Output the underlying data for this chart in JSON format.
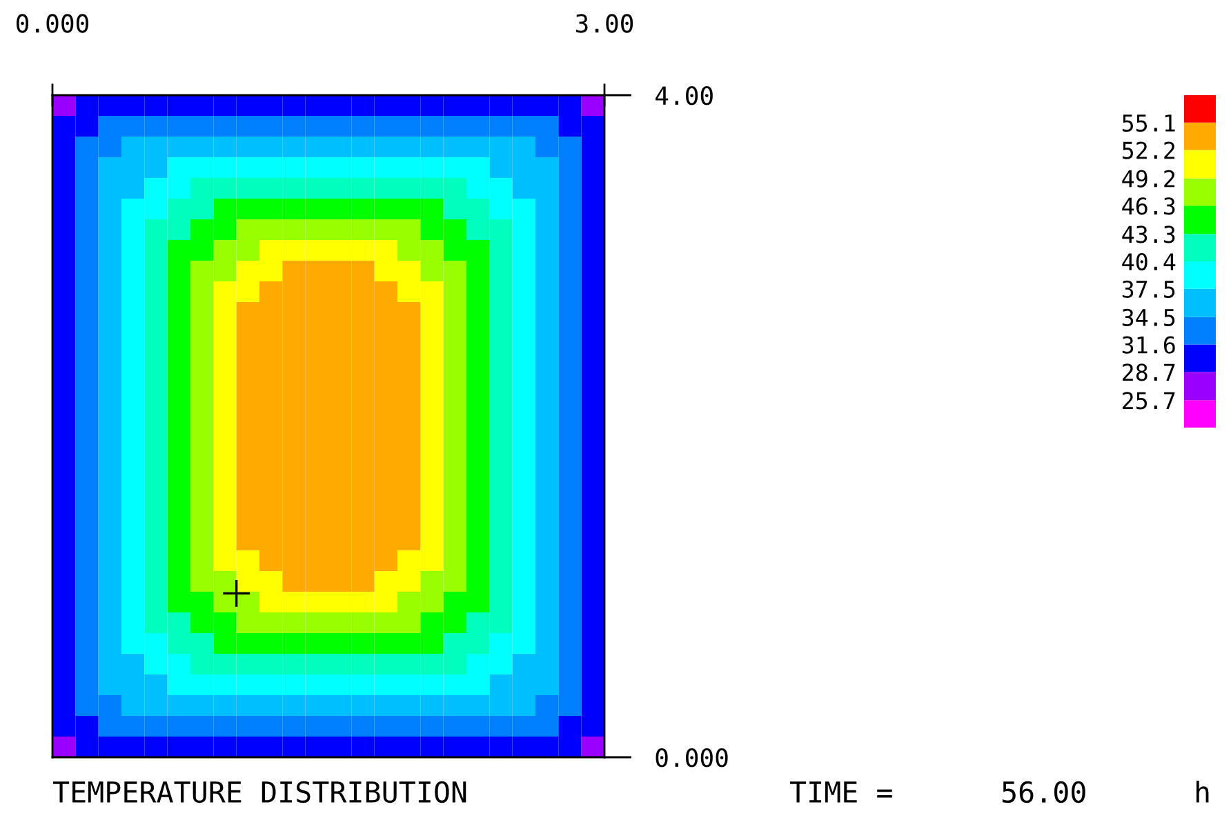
{
  "chart_data": {
    "type": "heatmap",
    "title": "TEMPERATURE DISTRIBUTION",
    "annotations": [
      "TIME =",
      "56.00",
      "h"
    ],
    "xlim": [
      0,
      3
    ],
    "ylim": [
      0,
      4
    ],
    "xticks": [
      {
        "value": 0,
        "label": "0.000"
      },
      {
        "value": 3,
        "label": "3.00"
      }
    ],
    "yticks": [
      {
        "value": 4,
        "label": "4.00"
      },
      {
        "value": 0,
        "label": "0.000"
      }
    ],
    "clim": [
      22.8,
      58.0
    ],
    "cticks": [
      25.7,
      28.7,
      31.6,
      34.5,
      37.5,
      40.4,
      43.3,
      46.3,
      49.2,
      52.2,
      55.1
    ],
    "colors": [
      "#ff00ff",
      "#9900ff",
      "#0000ff",
      "#0080ff",
      "#00bfff",
      "#00ffff",
      "#00ffbf",
      "#00ff00",
      "#99ff00",
      "#ffff00",
      "#ffaa00",
      "#ff0000"
    ],
    "series": [
      {
        "type": "scatter",
        "x": [
          1.0
        ],
        "values": [
          0.99
        ],
        "color": "#000000",
        "marker": "cross"
      }
    ],
    "cells": [
      [
        27.2,
        30.2,
        30.2,
        30.2,
        30.2,
        30.2,
        30.2,
        30.2,
        30.2,
        30.2,
        30.2,
        30.2,
        30.2,
        30.2,
        30.2,
        30.2,
        30.2,
        30.2,
        30.2,
        30.2,
        30.2,
        30.2,
        30.2,
        27.2
      ],
      [
        30.2,
        30.2,
        33.0,
        33.0,
        33.0,
        33.0,
        33.0,
        33.0,
        33.0,
        33.0,
        33.0,
        33.0,
        33.0,
        33.0,
        33.0,
        33.0,
        33.0,
        33.0,
        33.0,
        33.0,
        33.0,
        33.0,
        30.2,
        30.2
      ],
      [
        30.2,
        33.0,
        33.0,
        36.0,
        36.0,
        36.0,
        36.0,
        36.0,
        36.0,
        36.0,
        36.0,
        36.0,
        36.0,
        36.0,
        36.0,
        36.0,
        36.0,
        36.0,
        36.0,
        36.0,
        36.0,
        33.0,
        33.0,
        30.2
      ],
      [
        30.2,
        33.0,
        36.0,
        36.0,
        36.0,
        39.0,
        39.0,
        39.0,
        39.0,
        39.0,
        39.0,
        39.0,
        39.0,
        39.0,
        39.0,
        39.0,
        39.0,
        39.0,
        39.0,
        36.0,
        36.0,
        36.0,
        33.0,
        30.2
      ],
      [
        30.2,
        33.0,
        36.0,
        36.0,
        39.0,
        39.0,
        41.8,
        41.8,
        41.8,
        41.8,
        41.8,
        41.8,
        41.8,
        41.8,
        41.8,
        41.8,
        41.8,
        41.8,
        39.0,
        39.0,
        36.0,
        36.0,
        33.0,
        30.2
      ],
      [
        30.2,
        33.0,
        36.0,
        39.0,
        39.0,
        41.8,
        41.8,
        44.8,
        44.8,
        44.8,
        44.8,
        44.8,
        44.8,
        44.8,
        44.8,
        44.8,
        44.8,
        41.8,
        41.8,
        39.0,
        39.0,
        36.0,
        33.0,
        30.2
      ],
      [
        30.2,
        33.0,
        36.0,
        39.0,
        41.8,
        41.8,
        44.8,
        44.8,
        47.7,
        47.7,
        47.7,
        47.7,
        47.7,
        47.7,
        47.7,
        47.7,
        44.8,
        44.8,
        41.8,
        41.8,
        39.0,
        36.0,
        33.0,
        30.2
      ],
      [
        30.2,
        33.0,
        36.0,
        39.0,
        41.8,
        44.8,
        44.8,
        47.7,
        47.7,
        50.7,
        50.7,
        50.7,
        50.7,
        50.7,
        50.7,
        47.7,
        47.7,
        44.8,
        44.8,
        41.8,
        39.0,
        36.0,
        33.0,
        30.2
      ],
      [
        30.2,
        33.0,
        36.0,
        39.0,
        41.8,
        44.8,
        47.7,
        47.7,
        50.7,
        50.7,
        53.6,
        53.6,
        53.6,
        53.6,
        50.7,
        50.7,
        47.7,
        47.7,
        44.8,
        41.8,
        39.0,
        36.0,
        33.0,
        30.2
      ],
      [
        30.2,
        33.0,
        36.0,
        39.0,
        41.8,
        44.8,
        47.7,
        50.7,
        50.7,
        53.6,
        53.6,
        53.6,
        53.6,
        53.6,
        53.6,
        50.7,
        50.7,
        47.7,
        44.8,
        41.8,
        39.0,
        36.0,
        33.0,
        30.2
      ],
      [
        30.2,
        33.0,
        36.0,
        39.0,
        41.8,
        44.8,
        47.7,
        50.7,
        53.6,
        53.6,
        53.6,
        53.6,
        53.6,
        53.6,
        53.6,
        53.6,
        50.7,
        47.7,
        44.8,
        41.8,
        39.0,
        36.0,
        33.0,
        30.2
      ],
      [
        30.2,
        33.0,
        36.0,
        39.0,
        41.8,
        44.8,
        47.7,
        50.7,
        53.6,
        53.6,
        53.6,
        53.6,
        53.6,
        53.6,
        53.6,
        53.6,
        50.7,
        47.7,
        44.8,
        41.8,
        39.0,
        36.0,
        33.0,
        30.2
      ],
      [
        30.2,
        33.0,
        36.0,
        39.0,
        41.8,
        44.8,
        47.7,
        50.7,
        53.6,
        53.6,
        53.6,
        53.6,
        53.6,
        53.6,
        53.6,
        53.6,
        50.7,
        47.7,
        44.8,
        41.8,
        39.0,
        36.0,
        33.0,
        30.2
      ],
      [
        30.2,
        33.0,
        36.0,
        39.0,
        41.8,
        44.8,
        47.7,
        50.7,
        53.6,
        53.6,
        53.6,
        53.6,
        53.6,
        53.6,
        53.6,
        53.6,
        50.7,
        47.7,
        44.8,
        41.8,
        39.0,
        36.0,
        33.0,
        30.2
      ],
      [
        30.2,
        33.0,
        36.0,
        39.0,
        41.8,
        44.8,
        47.7,
        50.7,
        53.6,
        53.6,
        53.6,
        53.6,
        53.6,
        53.6,
        53.6,
        53.6,
        50.7,
        47.7,
        44.8,
        41.8,
        39.0,
        36.0,
        33.0,
        30.2
      ],
      [
        30.2,
        33.0,
        36.0,
        39.0,
        41.8,
        44.8,
        47.7,
        50.7,
        53.6,
        53.6,
        53.6,
        53.6,
        53.6,
        53.6,
        53.6,
        53.6,
        50.7,
        47.7,
        44.8,
        41.8,
        39.0,
        36.0,
        33.0,
        30.2
      ],
      [
        30.2,
        33.0,
        36.0,
        39.0,
        41.8,
        44.8,
        47.7,
        50.7,
        53.6,
        53.6,
        53.6,
        53.6,
        53.6,
        53.6,
        53.6,
        53.6,
        50.7,
        47.7,
        44.8,
        41.8,
        39.0,
        36.0,
        33.0,
        30.2
      ],
      [
        30.2,
        33.0,
        36.0,
        39.0,
        41.8,
        44.8,
        47.7,
        50.7,
        53.6,
        53.6,
        53.6,
        53.6,
        53.6,
        53.6,
        53.6,
        53.6,
        50.7,
        47.7,
        44.8,
        41.8,
        39.0,
        36.0,
        33.0,
        30.2
      ],
      [
        30.2,
        33.0,
        36.0,
        39.0,
        41.8,
        44.8,
        47.7,
        50.7,
        53.6,
        53.6,
        53.6,
        53.6,
        53.6,
        53.6,
        53.6,
        53.6,
        50.7,
        47.7,
        44.8,
        41.8,
        39.0,
        36.0,
        33.0,
        30.2
      ],
      [
        30.2,
        33.0,
        36.0,
        39.0,
        41.8,
        44.8,
        47.7,
        50.7,
        53.6,
        53.6,
        53.6,
        53.6,
        53.6,
        53.6,
        53.6,
        53.6,
        50.7,
        47.7,
        44.8,
        41.8,
        39.0,
        36.0,
        33.0,
        30.2
      ],
      [
        30.2,
        33.0,
        36.0,
        39.0,
        41.8,
        44.8,
        47.7,
        50.7,
        53.6,
        53.6,
        53.6,
        53.6,
        53.6,
        53.6,
        53.6,
        53.6,
        50.7,
        47.7,
        44.8,
        41.8,
        39.0,
        36.0,
        33.0,
        30.2
      ],
      [
        30.2,
        33.0,
        36.0,
        39.0,
        41.8,
        44.8,
        47.7,
        50.7,
        53.6,
        53.6,
        53.6,
        53.6,
        53.6,
        53.6,
        53.6,
        53.6,
        50.7,
        47.7,
        44.8,
        41.8,
        39.0,
        36.0,
        33.0,
        30.2
      ],
      [
        30.2,
        33.0,
        36.0,
        39.0,
        41.8,
        44.8,
        47.7,
        50.7,
        50.7,
        53.6,
        53.6,
        53.6,
        53.6,
        53.6,
        53.6,
        50.7,
        50.7,
        47.7,
        44.8,
        41.8,
        39.0,
        36.0,
        33.0,
        30.2
      ],
      [
        30.2,
        33.0,
        36.0,
        39.0,
        41.8,
        44.8,
        47.7,
        47.7,
        50.7,
        50.7,
        53.6,
        53.6,
        53.6,
        53.6,
        50.7,
        50.7,
        47.7,
        47.7,
        44.8,
        41.8,
        39.0,
        36.0,
        33.0,
        30.2
      ],
      [
        30.2,
        33.0,
        36.0,
        39.0,
        41.8,
        44.8,
        44.8,
        47.7,
        47.7,
        50.7,
        50.7,
        50.7,
        50.7,
        50.7,
        50.7,
        47.7,
        47.7,
        44.8,
        44.8,
        41.8,
        39.0,
        36.0,
        33.0,
        30.2
      ],
      [
        30.2,
        33.0,
        36.0,
        39.0,
        41.8,
        41.8,
        44.8,
        44.8,
        47.7,
        47.7,
        47.7,
        47.7,
        47.7,
        47.7,
        47.7,
        47.7,
        44.8,
        44.8,
        41.8,
        41.8,
        39.0,
        36.0,
        33.0,
        30.2
      ],
      [
        30.2,
        33.0,
        36.0,
        39.0,
        39.0,
        41.8,
        41.8,
        44.8,
        44.8,
        44.8,
        44.8,
        44.8,
        44.8,
        44.8,
        44.8,
        44.8,
        44.8,
        41.8,
        41.8,
        39.0,
        39.0,
        36.0,
        33.0,
        30.2
      ],
      [
        30.2,
        33.0,
        36.0,
        36.0,
        39.0,
        39.0,
        41.8,
        41.8,
        41.8,
        41.8,
        41.8,
        41.8,
        41.8,
        41.8,
        41.8,
        41.8,
        41.8,
        41.8,
        39.0,
        39.0,
        36.0,
        36.0,
        33.0,
        30.2
      ],
      [
        30.2,
        33.0,
        36.0,
        36.0,
        36.0,
        39.0,
        39.0,
        39.0,
        39.0,
        39.0,
        39.0,
        39.0,
        39.0,
        39.0,
        39.0,
        39.0,
        39.0,
        39.0,
        39.0,
        36.0,
        36.0,
        36.0,
        33.0,
        30.2
      ],
      [
        30.2,
        33.0,
        33.0,
        36.0,
        36.0,
        36.0,
        36.0,
        36.0,
        36.0,
        36.0,
        36.0,
        36.0,
        36.0,
        36.0,
        36.0,
        36.0,
        36.0,
        36.0,
        36.0,
        36.0,
        36.0,
        33.0,
        33.0,
        30.2
      ],
      [
        30.2,
        30.2,
        33.0,
        33.0,
        33.0,
        33.0,
        33.0,
        33.0,
        33.0,
        33.0,
        33.0,
        33.0,
        33.0,
        33.0,
        33.0,
        33.0,
        33.0,
        33.0,
        33.0,
        33.0,
        33.0,
        33.0,
        30.2,
        30.2
      ],
      [
        27.2,
        30.2,
        30.2,
        30.2,
        30.2,
        30.2,
        30.2,
        30.2,
        30.2,
        30.2,
        30.2,
        30.2,
        30.2,
        30.2,
        30.2,
        30.2,
        30.2,
        30.2,
        30.2,
        30.2,
        30.2,
        30.2,
        30.2,
        27.2
      ]
    ]
  }
}
